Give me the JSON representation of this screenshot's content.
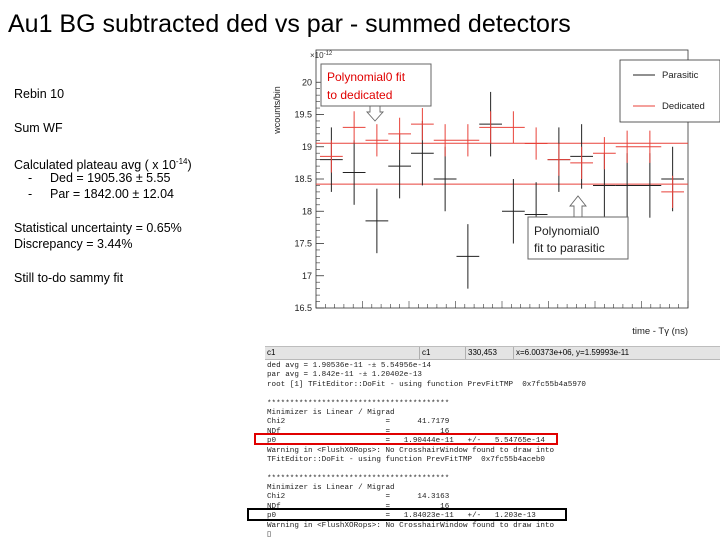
{
  "slide": {
    "title": "Au1 BG subtracted ded vs par - summed detectors",
    "notes": {
      "rebin": "Rebin 10",
      "sum_wf": "Sum WF",
      "plateau_prefix": "Calculated plateau avg ( x 10",
      "plateau_exp": "-14",
      "plateau_suffix": ")",
      "ded_dash": "-",
      "ded_line": "Ded = 1905.36 ± 5.55",
      "par_dash": "-",
      "par_line": "Par = 1842.00 ± 12.04",
      "stat_unc": "Statistical uncertainty = 0.65%",
      "discrepancy": "Discrepancy = 3.44%",
      "todo": "Still to-do sammy fit"
    }
  },
  "plot": {
    "exponent_label": "×10",
    "exponent_sup": "-12",
    "callout_dedicated_line1": "Polynomial0 fit",
    "callout_dedicated_line2": "to dedicated",
    "callout_parasitic_line1": "Polynomial0",
    "callout_parasitic_line2": "fit to parasitic",
    "colors": {
      "dedicated": "#e8423a",
      "parasitic": "#222222",
      "callout_text_red": "#e00000"
    }
  },
  "chart_data": {
    "type": "scatter",
    "title": "",
    "xlabel": "time - Tγ (ns)",
    "ylabel": "wcounts/bin",
    "ylim": [
      16.5,
      20.5
    ],
    "y_ticks": [
      "16.5",
      "17",
      "17.5",
      "18",
      "18.5",
      "19",
      "19.5",
      "20"
    ],
    "x_ticks": [],
    "legend": {
      "placement": "top-right",
      "entries": [
        "Parasitic",
        "Dedicated"
      ]
    },
    "grid": false,
    "fits": [
      {
        "name": "Polynomial0 fit to dedicated",
        "value": 19.0536
      },
      {
        "name": "Polynomial0 fit to parasitic",
        "value": 18.42
      }
    ],
    "series": [
      {
        "name": "Parasitic",
        "x": [
          1,
          2,
          3,
          4,
          5,
          6,
          7,
          8,
          9,
          10,
          11,
          12,
          13,
          14,
          15,
          16
        ],
        "y": [
          18.8,
          18.6,
          17.85,
          18.7,
          18.9,
          18.5,
          17.3,
          19.35,
          18.0,
          17.95,
          18.8,
          18.85,
          18.4,
          18.4,
          18.4,
          18.5
        ],
        "yerr": [
          0.5,
          0.5,
          0.5,
          0.5,
          0.5,
          0.5,
          0.5,
          0.5,
          0.5,
          0.5,
          0.5,
          0.5,
          0.5,
          0.5,
          0.5,
          0.5
        ]
      },
      {
        "name": "Dedicated",
        "x": [
          1,
          2,
          3,
          4,
          5,
          6,
          7,
          8,
          9,
          10,
          11,
          12,
          13,
          14,
          15,
          16
        ],
        "y": [
          18.85,
          19.3,
          19.1,
          19.2,
          19.35,
          19.1,
          19.1,
          19.3,
          19.3,
          19.05,
          18.8,
          18.75,
          18.9,
          19.0,
          19.0,
          18.3
        ],
        "yerr": [
          0.25,
          0.25,
          0.25,
          0.25,
          0.25,
          0.25,
          0.25,
          0.25,
          0.25,
          0.25,
          0.25,
          0.25,
          0.25,
          0.25,
          0.25,
          0.25
        ]
      }
    ]
  },
  "terminal": {
    "tab1": "c1",
    "tab2": "c1",
    "tab3": "330,453",
    "coords": "x=6.00373e+06, y=1.59993e-11",
    "lines": [
      "ded avg = 1.90536e-11 -± 5.54956e-14",
      "par avg = 1.842e-11 -± 1.20402e-13",
      "root [1] TFitEditor::DoFit - using function PrevFitTMP  0x7fc55b4a5970",
      "",
      "****************************************",
      "Minimizer is Linear / Migrad",
      "Chi2                      =      41.7179",
      "NDf                       =           16",
      "p0                        =   1.90444e-11   +/-   5.54765e-14",
      "Warning in <FlushXORops>: No CrosshairWindow found to draw into",
      "TFitEditor::DoFit - using function PrevFitTMP  0x7fc55b4aceb0",
      "",
      "****************************************",
      "Minimizer is Linear / Migrad",
      "Chi2                      =      14.3163",
      "NDf                       =           16",
      "p0                        =   1.84023e-11   +/-   1.203e-13",
      "Warning in <FlushXORops>: No CrosshairWindow found to draw into",
      "▯"
    ]
  }
}
